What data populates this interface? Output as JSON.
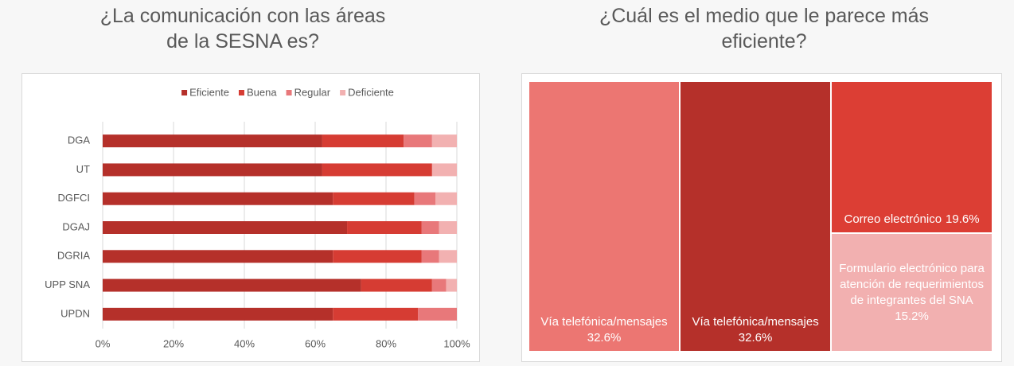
{
  "chart_data": [
    {
      "type": "stacked-bar-horizontal",
      "title": "¿La comunicación con las áreas de la SESNA es?",
      "categories": [
        "DGA",
        "UT",
        "DGFCI",
        "DGAJ",
        "DGRIA",
        "UPP SNA",
        "UPDN"
      ],
      "series": [
        {
          "name": "Eficiente",
          "color": "#b5302a",
          "values": [
            62,
            62,
            65,
            69,
            65,
            73,
            65
          ]
        },
        {
          "name": "Buena",
          "color": "#d63c33",
          "values": [
            23,
            31,
            23,
            21,
            25,
            20,
            24
          ]
        },
        {
          "name": "Regular",
          "color": "#e8787a",
          "values": [
            8,
            0,
            6,
            5,
            5,
            4,
            11
          ]
        },
        {
          "name": "Deficiente",
          "color": "#f2b1b1",
          "values": [
            7,
            7,
            6,
            5,
            5,
            3,
            0
          ]
        }
      ],
      "xlim": [
        0,
        100
      ],
      "xticks": [
        {
          "value": 0,
          "label": "0%"
        },
        {
          "value": 20,
          "label": "20%"
        },
        {
          "value": 40,
          "label": "40%"
        },
        {
          "value": 60,
          "label": "60%"
        },
        {
          "value": 80,
          "label": "80%"
        },
        {
          "value": 100,
          "label": "100%"
        }
      ],
      "grid": true,
      "legend": "top"
    },
    {
      "type": "treemap",
      "title": "¿Cuál es el medio que le parece más eficiente?",
      "categories": [
        "Vía telefónica/mensajes",
        "Vía telefónica/mensajes",
        "Correo electrónico",
        "Formulario electrónico para atención de requerimientos de integrantes del SNA"
      ],
      "values": [
        32.6,
        32.6,
        19.6,
        15.2
      ],
      "value_labels": [
        "32.6%",
        "32.6%",
        "19.6%",
        "15.2%"
      ],
      "colors": [
        "#ec7672",
        "#b5302a",
        "#dc3e34",
        "#f2b0b0"
      ]
    }
  ]
}
